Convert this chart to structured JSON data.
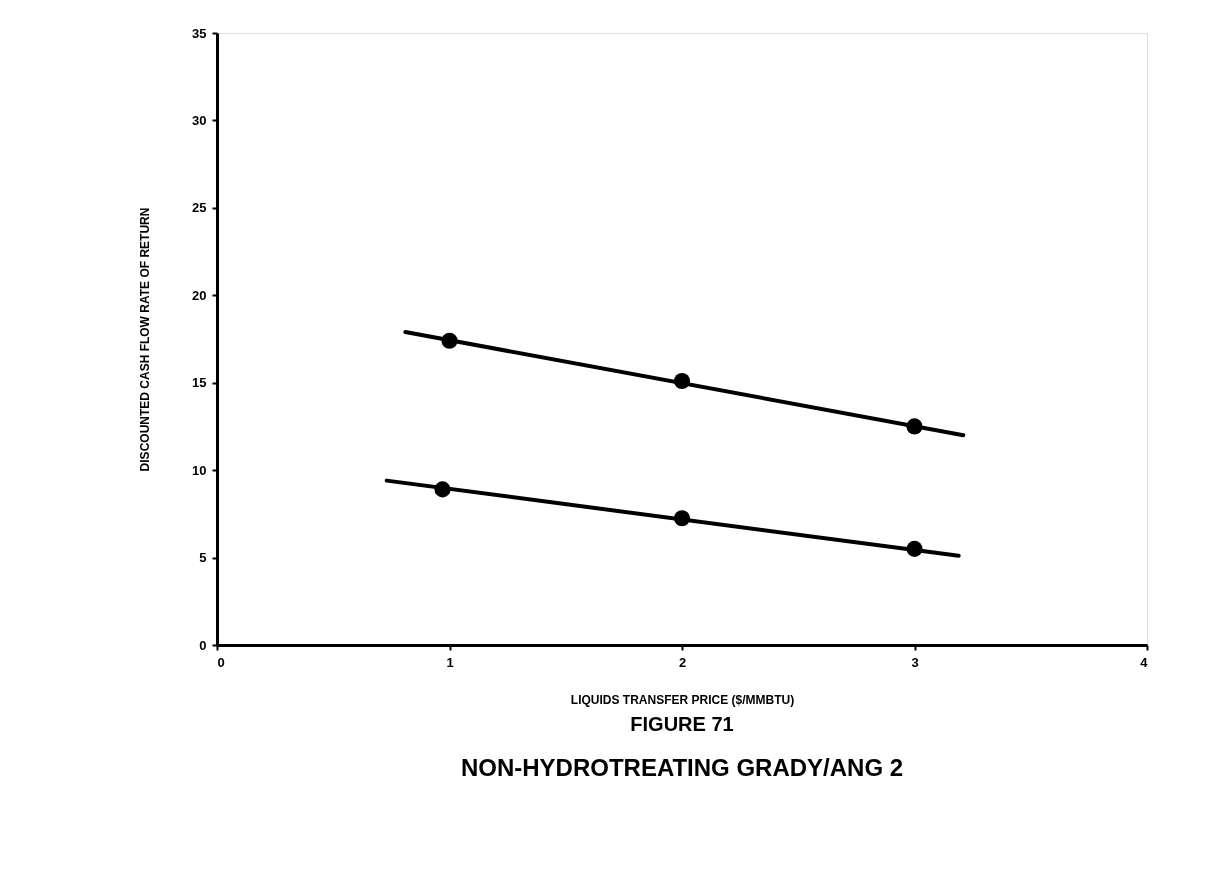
{
  "chart_data": {
    "type": "scatter",
    "title": "FIGURE 71",
    "subtitle": "NON-HYDROTREATING GRADY/ANG 2",
    "xlabel": "LIQUIDS TRANSFER PRICE ($/MMBTU)",
    "ylabel": "DISCOUNTED CASH FLOW RATE OF RETURN",
    "xlim": [
      0,
      4
    ],
    "xticks": [
      0,
      1,
      2,
      3,
      4
    ],
    "ylim": [
      0,
      35
    ],
    "yticks": [
      0,
      5,
      10,
      15,
      20,
      25,
      30,
      35
    ],
    "grid": false,
    "series": [
      {
        "type": "line",
        "color": "#000000",
        "marker": "none",
        "line_style": "solid",
        "x": [
          0.81,
          3.21
        ],
        "values": [
          17.9,
          12.0
        ]
      },
      {
        "type": "line",
        "color": "#000000",
        "marker": "none",
        "line_style": "solid",
        "x": [
          0.73,
          3.19
        ],
        "values": [
          9.4,
          5.1
        ]
      },
      {
        "color": "#000000",
        "marker": "circle",
        "x": [
          1,
          2,
          3
        ],
        "values": [
          17.4,
          15.1,
          12.5
        ]
      },
      {
        "color": "#000000",
        "marker": "circle",
        "x": [
          0.97,
          2,
          3
        ],
        "values": [
          8.9,
          7.25,
          5.5
        ]
      }
    ]
  }
}
